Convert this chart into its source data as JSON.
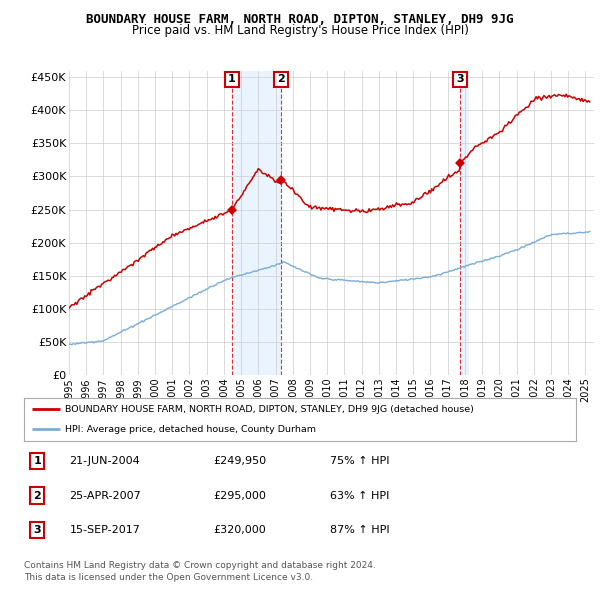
{
  "title": "BOUNDARY HOUSE FARM, NORTH ROAD, DIPTON, STANLEY, DH9 9JG",
  "subtitle": "Price paid vs. HM Land Registry's House Price Index (HPI)",
  "ylabel_ticks": [
    "£0",
    "£50K",
    "£100K",
    "£150K",
    "£200K",
    "£250K",
    "£300K",
    "£350K",
    "£400K",
    "£450K"
  ],
  "ytick_values": [
    0,
    50000,
    100000,
    150000,
    200000,
    250000,
    300000,
    350000,
    400000,
    450000
  ],
  "ylim": [
    0,
    460000
  ],
  "xlim_start": 1995,
  "xlim_end": 2025.5,
  "sales": [
    {
      "label": "1",
      "date_x": 2004.47,
      "price": 249950
    },
    {
      "label": "2",
      "date_x": 2007.31,
      "price": 295000
    },
    {
      "label": "3",
      "date_x": 2017.71,
      "price": 320000
    }
  ],
  "legend_line1": "BOUNDARY HOUSE FARM, NORTH ROAD, DIPTON, STANLEY, DH9 9JG (detached house)",
  "legend_line2": "HPI: Average price, detached house, County Durham",
  "table_rows": [
    [
      "1",
      "21-JUN-2004",
      "£249,950",
      "75% ↑ HPI"
    ],
    [
      "2",
      "25-APR-2007",
      "£295,000",
      "63% ↑ HPI"
    ],
    [
      "3",
      "15-SEP-2017",
      "£320,000",
      "87% ↑ HPI"
    ]
  ],
  "footer1": "Contains HM Land Registry data © Crown copyright and database right 2024.",
  "footer2": "This data is licensed under the Open Government Licence v3.0.",
  "red_color": "#cc0000",
  "blue_color": "#7aadd6",
  "shade_color": "#ddeeff",
  "bg_color": "#ffffff",
  "grid_color": "#cccccc"
}
